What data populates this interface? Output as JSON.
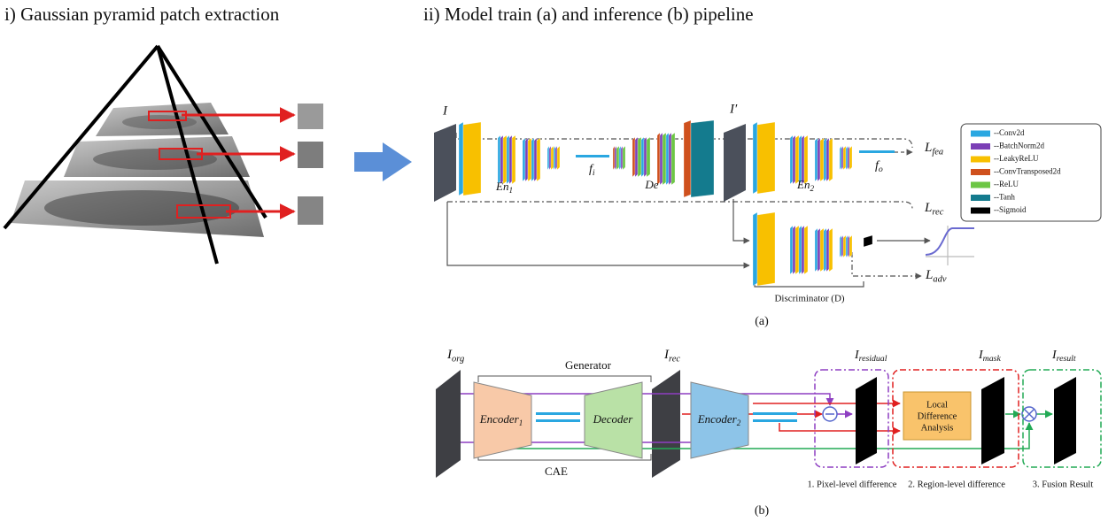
{
  "left": {
    "title": "i) Gaussian pyramid patch extraction"
  },
  "right": {
    "title": "ii) Model train (a) and inference (b) pipeline"
  },
  "train": {
    "input": "I",
    "recon": "I′",
    "fi": {
      "text": "f",
      "sub": "i"
    },
    "fo": {
      "text": "f",
      "sub": "o"
    },
    "en1": {
      "text": "En",
      "sub": "1"
    },
    "de": "De",
    "en2": {
      "text": "En",
      "sub": "2"
    },
    "lfea": {
      "text": "L",
      "sub": "fea"
    },
    "lrec": {
      "text": "L",
      "sub": "rec"
    },
    "ladv": {
      "text": "L",
      "sub": "adv"
    },
    "disc": "Discriminator (D)",
    "caption": "(a)"
  },
  "legend": [
    {
      "label": "--Conv2d",
      "color": "#2aa7e1"
    },
    {
      "label": "--BatchNorm2d",
      "color": "#7b3fb6"
    },
    {
      "label": "--LeakyReLU",
      "color": "#f8c000"
    },
    {
      "label": "--ConvTransposed2d",
      "color": "#cf501d"
    },
    {
      "label": "--ReLU",
      "color": "#6cc644"
    },
    {
      "label": "--Tanh",
      "color": "#147b8e"
    },
    {
      "label": "--Sigmoid",
      "color": "#000000"
    }
  ],
  "infer": {
    "iorg": {
      "text": "I",
      "sub": "org"
    },
    "generator": "Generator",
    "irec": {
      "text": "I",
      "sub": "rec"
    },
    "enc1": {
      "text": "Encoder",
      "sub": "1"
    },
    "decoder": "Decoder",
    "enc2": {
      "text": "Encoder",
      "sub": "2"
    },
    "cae": "CAE",
    "iresidual": {
      "text": "I",
      "sub": "residual"
    },
    "imask": {
      "text": "I",
      "sub": "mask"
    },
    "iresult": {
      "text": "I",
      "sub": "result"
    },
    "lda": [
      "Local",
      "Difference",
      "Analysis"
    ],
    "steps": [
      "1. Pixel-level difference",
      "2. Region-level difference",
      "3. Fusion Result"
    ],
    "caption": "(b)"
  }
}
